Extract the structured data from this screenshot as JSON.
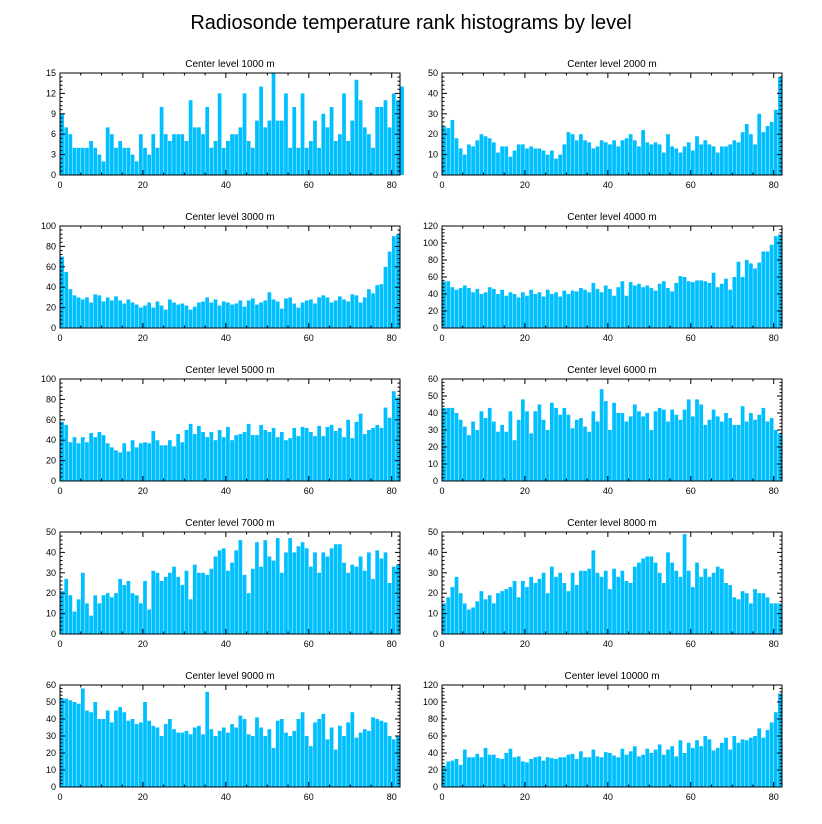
{
  "figure": {
    "title": "Radiosonde temperature rank histograms by level"
  },
  "colors": {
    "bar": "#00bfff",
    "axis": "#000000"
  },
  "chart_data": [
    {
      "type": "bar",
      "title": "Center level 1000 m",
      "xlim": [
        0,
        82
      ],
      "ylim": [
        0,
        15
      ],
      "xticks": [
        0,
        20,
        40,
        60,
        80
      ],
      "yticks": [
        0,
        3,
        6,
        9,
        12,
        15
      ],
      "values": [
        9,
        7,
        6,
        4,
        4,
        4,
        4,
        5,
        4,
        3,
        2,
        7,
        6,
        4,
        5,
        4,
        4,
        3,
        2,
        6,
        4,
        3,
        6,
        4,
        10,
        6,
        5,
        6,
        6,
        6,
        5,
        11,
        7,
        7,
        6,
        10,
        4,
        5,
        12,
        4,
        5,
        6,
        6,
        7,
        12,
        5,
        4,
        8,
        13,
        7,
        8,
        15,
        8,
        8,
        12,
        4,
        10,
        4,
        12,
        4,
        5,
        8,
        4,
        9,
        7,
        10,
        5,
        6,
        12,
        5,
        8,
        14,
        11,
        7,
        6,
        4,
        10,
        10,
        11,
        7,
        12,
        11,
        13
      ]
    },
    {
      "type": "bar",
      "title": "Center level 2000 m",
      "xlim": [
        0,
        82
      ],
      "ylim": [
        0,
        50
      ],
      "xticks": [
        0,
        20,
        40,
        60,
        80
      ],
      "yticks": [
        0,
        10,
        20,
        30,
        40,
        50
      ],
      "values": [
        24,
        23,
        27,
        18,
        13,
        10,
        15,
        14,
        17,
        20,
        19,
        18,
        16,
        11,
        14,
        14,
        9,
        12,
        15,
        15,
        13,
        14,
        13,
        13,
        12,
        10,
        12,
        8,
        10,
        15,
        21,
        20,
        17,
        20,
        17,
        16,
        13,
        14,
        17,
        16,
        15,
        17,
        14,
        17,
        18,
        20,
        17,
        14,
        22,
        16,
        15,
        16,
        15,
        11,
        20,
        14,
        13,
        11,
        14,
        16,
        12,
        19,
        15,
        17,
        15,
        14,
        11,
        14,
        14,
        15,
        17,
        16,
        21,
        25,
        20,
        15,
        30,
        21,
        24,
        26,
        32,
        48
      ]
    },
    {
      "type": "bar",
      "title": "Center level 3000 m",
      "xlim": [
        0,
        82
      ],
      "ylim": [
        0,
        100
      ],
      "xticks": [
        0,
        20,
        40,
        60,
        80
      ],
      "yticks": [
        0,
        20,
        40,
        60,
        80,
        100
      ],
      "values": [
        70,
        55,
        38,
        32,
        30,
        28,
        30,
        25,
        33,
        32,
        26,
        30,
        27,
        31,
        27,
        24,
        28,
        25,
        23,
        20,
        22,
        25,
        20,
        26,
        22,
        18,
        28,
        25,
        23,
        24,
        22,
        18,
        21,
        25,
        26,
        30,
        25,
        28,
        22,
        26,
        25,
        23,
        24,
        27,
        21,
        27,
        29,
        23,
        25,
        27,
        35,
        28,
        26,
        19,
        29,
        30,
        24,
        20,
        25,
        27,
        28,
        24,
        30,
        32,
        30,
        25,
        27,
        31,
        28,
        26,
        33,
        32,
        25,
        30,
        38,
        34,
        42,
        43,
        60,
        75,
        90,
        92
      ]
    },
    {
      "type": "bar",
      "title": "Center level 4000 m",
      "xlim": [
        0,
        82
      ],
      "ylim": [
        0,
        120
      ],
      "xticks": [
        0,
        20,
        40,
        60,
        80
      ],
      "yticks": [
        0,
        20,
        40,
        60,
        80,
        100,
        120
      ],
      "values": [
        55,
        55,
        48,
        45,
        47,
        50,
        47,
        42,
        46,
        40,
        42,
        48,
        46,
        40,
        45,
        38,
        42,
        40,
        36,
        42,
        38,
        45,
        40,
        42,
        37,
        45,
        40,
        42,
        37,
        44,
        40,
        44,
        43,
        47,
        45,
        42,
        53,
        46,
        42,
        50,
        46,
        38,
        48,
        55,
        38,
        54,
        50,
        52,
        48,
        50,
        47,
        44,
        52,
        55,
        47,
        43,
        53,
        61,
        60,
        55,
        54,
        56,
        56,
        55,
        53,
        65,
        48,
        52,
        58,
        45,
        60,
        78,
        60,
        80,
        76,
        70,
        77,
        90,
        90,
        98,
        108,
        110
      ]
    },
    {
      "type": "bar",
      "title": "Center level 5000 m",
      "xlim": [
        0,
        82
      ],
      "ylim": [
        0,
        100
      ],
      "xticks": [
        0,
        20,
        40,
        60,
        80
      ],
      "yticks": [
        0,
        20,
        40,
        60,
        80,
        100
      ],
      "values": [
        58,
        55,
        38,
        43,
        37,
        43,
        38,
        47,
        43,
        48,
        45,
        37,
        33,
        30,
        28,
        37,
        29,
        40,
        33,
        37,
        38,
        37,
        49,
        40,
        35,
        35,
        40,
        34,
        46,
        38,
        50,
        56,
        46,
        54,
        48,
        43,
        48,
        40,
        50,
        43,
        53,
        40,
        45,
        46,
        48,
        56,
        45,
        45,
        55,
        50,
        48,
        52,
        43,
        48,
        40,
        42,
        52,
        44,
        53,
        52,
        48,
        44,
        54,
        44,
        53,
        55,
        49,
        52,
        43,
        60,
        42,
        58,
        66,
        46,
        50,
        52,
        55,
        52,
        72,
        62,
        88,
        82
      ]
    },
    {
      "type": "bar",
      "title": "Center level 6000 m",
      "xlim": [
        0,
        82
      ],
      "ylim": [
        0,
        60
      ],
      "xticks": [
        0,
        20,
        40,
        60,
        80
      ],
      "yticks": [
        0,
        10,
        20,
        30,
        40,
        50,
        60
      ],
      "values": [
        43,
        43,
        43,
        40,
        36,
        32,
        27,
        35,
        30,
        41,
        37,
        43,
        35,
        29,
        33,
        29,
        41,
        24,
        36,
        48,
        41,
        28,
        41,
        45,
        36,
        30,
        46,
        43,
        39,
        43,
        39,
        31,
        36,
        37,
        32,
        29,
        41,
        35,
        54,
        47,
        30,
        46,
        40,
        40,
        35,
        38,
        45,
        41,
        38,
        40,
        30,
        41,
        43,
        42,
        35,
        42,
        39,
        36,
        42,
        48,
        38,
        48,
        45,
        33,
        36,
        42,
        38,
        35,
        40,
        37,
        33,
        33,
        44,
        35,
        40,
        36,
        39,
        43,
        35,
        37,
        30,
        28
      ]
    },
    {
      "type": "bar",
      "title": "Center level 7000 m",
      "xlim": [
        0,
        82
      ],
      "ylim": [
        0,
        50
      ],
      "xticks": [
        0,
        20,
        40,
        60,
        80
      ],
      "yticks": [
        0,
        10,
        20,
        30,
        40,
        50
      ],
      "values": [
        21,
        27,
        19,
        11,
        17,
        30,
        15,
        9,
        19,
        15,
        19,
        20,
        18,
        20,
        27,
        24,
        26,
        20,
        19,
        15,
        26,
        12,
        31,
        30,
        26,
        28,
        30,
        33,
        28,
        24,
        31,
        17,
        34,
        30,
        30,
        29,
        32,
        38,
        41,
        42,
        31,
        35,
        41,
        46,
        29,
        20,
        32,
        45,
        33,
        46,
        38,
        36,
        47,
        30,
        40,
        47,
        40,
        43,
        45,
        42,
        33,
        40,
        30,
        40,
        38,
        42,
        44,
        44,
        35,
        30,
        34,
        33,
        38,
        31,
        40,
        27,
        41,
        37,
        40,
        25,
        33,
        34
      ]
    },
    {
      "type": "bar",
      "title": "Center level 8000 m",
      "xlim": [
        0,
        82
      ],
      "ylim": [
        0,
        50
      ],
      "xticks": [
        0,
        20,
        40,
        60,
        80
      ],
      "yticks": [
        0,
        10,
        20,
        30,
        40,
        50
      ],
      "values": [
        15,
        18,
        23,
        28,
        20,
        15,
        12,
        13,
        16,
        21,
        17,
        19,
        15,
        20,
        21,
        22,
        23,
        26,
        18,
        26,
        23,
        28,
        25,
        27,
        30,
        20,
        33,
        28,
        30,
        25,
        21,
        30,
        24,
        31,
        31,
        32,
        41,
        30,
        28,
        31,
        22,
        32,
        28,
        31,
        26,
        25,
        33,
        35,
        37,
        38,
        38,
        35,
        30,
        25,
        40,
        35,
        31,
        28,
        49,
        31,
        23,
        35,
        28,
        32,
        28,
        30,
        33,
        32,
        25,
        24,
        18,
        17,
        21,
        20,
        15,
        22,
        20,
        20,
        18,
        15,
        15,
        15
      ]
    },
    {
      "type": "bar",
      "title": "Center level 9000 m",
      "xlim": [
        0,
        82
      ],
      "ylim": [
        0,
        60
      ],
      "xticks": [
        0,
        20,
        40,
        60,
        80
      ],
      "yticks": [
        0,
        10,
        20,
        30,
        40,
        50,
        60
      ],
      "values": [
        52,
        52,
        51,
        50,
        49,
        58,
        45,
        44,
        50,
        40,
        40,
        45,
        38,
        45,
        47,
        44,
        39,
        40,
        37,
        38,
        50,
        39,
        36,
        35,
        30,
        37,
        40,
        34,
        32,
        32,
        33,
        31,
        35,
        36,
        31,
        56,
        34,
        30,
        33,
        35,
        32,
        37,
        35,
        42,
        40,
        31,
        30,
        41,
        35,
        30,
        34,
        23,
        39,
        40,
        32,
        30,
        33,
        40,
        44,
        30,
        24,
        38,
        40,
        43,
        28,
        35,
        22,
        36,
        30,
        38,
        44,
        29,
        32,
        34,
        33,
        41,
        40,
        39,
        38,
        30,
        28,
        30
      ]
    },
    {
      "type": "bar",
      "title": "Center level 10000 m",
      "xlim": [
        0,
        82
      ],
      "ylim": [
        0,
        120
      ],
      "xticks": [
        0,
        20,
        40,
        60,
        80
      ],
      "yticks": [
        0,
        20,
        40,
        60,
        80,
        100,
        120
      ],
      "values": [
        25,
        30,
        31,
        33,
        26,
        44,
        35,
        35,
        39,
        35,
        46,
        38,
        38,
        34,
        33,
        40,
        45,
        35,
        36,
        30,
        29,
        33,
        35,
        36,
        31,
        35,
        34,
        33,
        35,
        35,
        38,
        39,
        33,
        42,
        35,
        35,
        44,
        36,
        35,
        41,
        40,
        37,
        35,
        45,
        38,
        42,
        48,
        36,
        38,
        45,
        40,
        44,
        50,
        38,
        44,
        48,
        36,
        55,
        40,
        52,
        46,
        55,
        48,
        60,
        56,
        43,
        46,
        52,
        58,
        44,
        60,
        52,
        56,
        55,
        58,
        60,
        69,
        58,
        67,
        76,
        88,
        110
      ]
    }
  ]
}
